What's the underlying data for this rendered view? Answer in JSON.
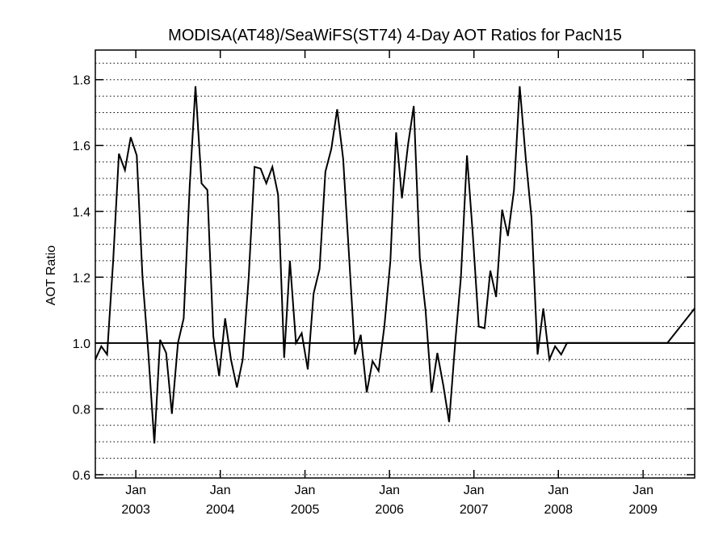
{
  "chart_data": {
    "type": "line",
    "title": "MODISA(AT48)/SeaWiFS(ST74) 4-Day AOT Ratios for PacN15",
    "ylabel": "AOT Ratio",
    "xlabel": "",
    "xlim": [
      "2002-07-10",
      "2009-08-12"
    ],
    "ylim": [
      0.59,
      1.89
    ],
    "y_ticks": [
      0.6,
      0.8,
      1.0,
      1.2,
      1.4,
      1.6,
      1.8
    ],
    "y_tick_labels": [
      "0.6",
      "0.8",
      "1.0",
      "1.2",
      "1.4",
      "1.6",
      "1.8"
    ],
    "y_minor_step": 0.05,
    "grid": "horizontal dotted at every 0.05",
    "reference_line": 1.0,
    "x_ticks": [
      {
        "date": "2003-01-01",
        "month": "Jan",
        "year": "2003"
      },
      {
        "date": "2004-01-01",
        "month": "Jan",
        "year": "2004"
      },
      {
        "date": "2005-01-01",
        "month": "Jan",
        "year": "2005"
      },
      {
        "date": "2006-01-01",
        "month": "Jan",
        "year": "2006"
      },
      {
        "date": "2007-01-01",
        "month": "Jan",
        "year": "2007"
      },
      {
        "date": "2008-01-01",
        "month": "Jan",
        "year": "2008"
      },
      {
        "date": "2009-01-01",
        "month": "Jan",
        "year": "2009"
      }
    ],
    "series": [
      {
        "x": [
          "2002-07-10",
          "2002-08-05",
          "2002-08-30",
          "2002-09-25",
          "2002-10-20",
          "2002-11-15",
          "2002-12-10",
          "2003-01-05",
          "2003-01-30",
          "2003-02-24",
          "2003-03-22",
          "2003-04-16",
          "2003-05-12",
          "2003-06-06",
          "2003-07-02",
          "2003-07-27",
          "2003-08-22",
          "2003-09-16",
          "2003-10-12",
          "2003-11-06",
          "2003-12-02",
          "2003-12-27",
          "2004-01-22",
          "2004-02-16",
          "2004-03-13",
          "2004-04-07",
          "2004-05-03",
          "2004-05-28",
          "2004-06-23",
          "2004-07-18",
          "2004-08-13",
          "2004-09-07",
          "2004-10-03",
          "2004-10-28",
          "2004-11-23",
          "2004-12-18",
          "2005-01-13",
          "2005-02-07",
          "2005-03-05",
          "2005-03-30",
          "2005-04-25",
          "2005-05-20",
          "2005-06-15",
          "2005-07-10",
          "2005-08-05",
          "2005-08-30",
          "2005-09-25",
          "2005-10-20",
          "2005-11-15",
          "2005-12-10",
          "2006-01-05",
          "2006-01-30",
          "2006-02-24",
          "2006-03-22",
          "2006-04-16",
          "2006-05-12",
          "2006-06-06",
          "2006-07-02",
          "2006-07-27",
          "2006-08-22",
          "2006-09-16",
          "2006-10-12",
          "2006-11-06",
          "2006-12-02",
          "2006-12-27",
          "2007-01-22",
          "2007-02-16",
          "2007-03-13",
          "2007-04-07",
          "2007-05-03",
          "2007-05-28",
          "2007-06-23",
          "2007-07-18",
          "2007-08-13",
          "2007-09-07",
          "2007-10-03",
          "2007-10-28",
          "2007-11-23",
          "2007-12-18",
          "2008-01-13",
          "2008-02-07",
          "2008-05-20",
          "2008-06-15",
          "2008-07-10",
          "2008-10-20",
          "2008-11-15",
          "2008-12-10",
          "2009-01-05",
          "2009-01-30",
          "2009-02-24",
          "2009-03-22",
          "2009-04-16",
          "2009-08-12"
        ],
        "y": [
          0.95,
          0.99,
          0.965,
          1.25,
          1.575,
          1.525,
          1.625,
          1.57,
          1.2,
          0.97,
          0.695,
          1.01,
          0.97,
          0.785,
          1.0,
          1.075,
          1.48,
          1.78,
          1.485,
          1.465,
          1.02,
          0.9,
          1.075,
          0.95,
          0.865,
          0.95,
          1.2,
          1.535,
          1.53,
          1.485,
          1.535,
          1.45,
          0.955,
          1.25,
          1.0,
          1.03,
          0.92,
          1.15,
          1.225,
          1.52,
          1.59,
          1.71,
          1.56,
          1.27,
          0.965,
          1.025,
          0.85,
          0.945,
          0.915,
          1.05,
          1.25,
          1.64,
          1.44,
          1.6,
          1.72,
          1.26,
          1.1,
          0.85,
          0.97,
          0.87,
          0.76,
          1.0,
          1.2,
          1.57,
          1.33,
          1.05,
          1.045,
          1.22,
          1.14,
          1.405,
          1.325,
          1.465,
          1.78,
          1.56,
          1.38,
          0.965,
          1.105,
          0.95,
          0.99,
          0.965,
          1.0,
          1.0,
          1.0,
          1.0,
          1.0,
          1.0,
          1.0,
          1.0,
          1.0,
          1.0,
          1.0,
          1.0,
          1.105
        ]
      }
    ]
  }
}
